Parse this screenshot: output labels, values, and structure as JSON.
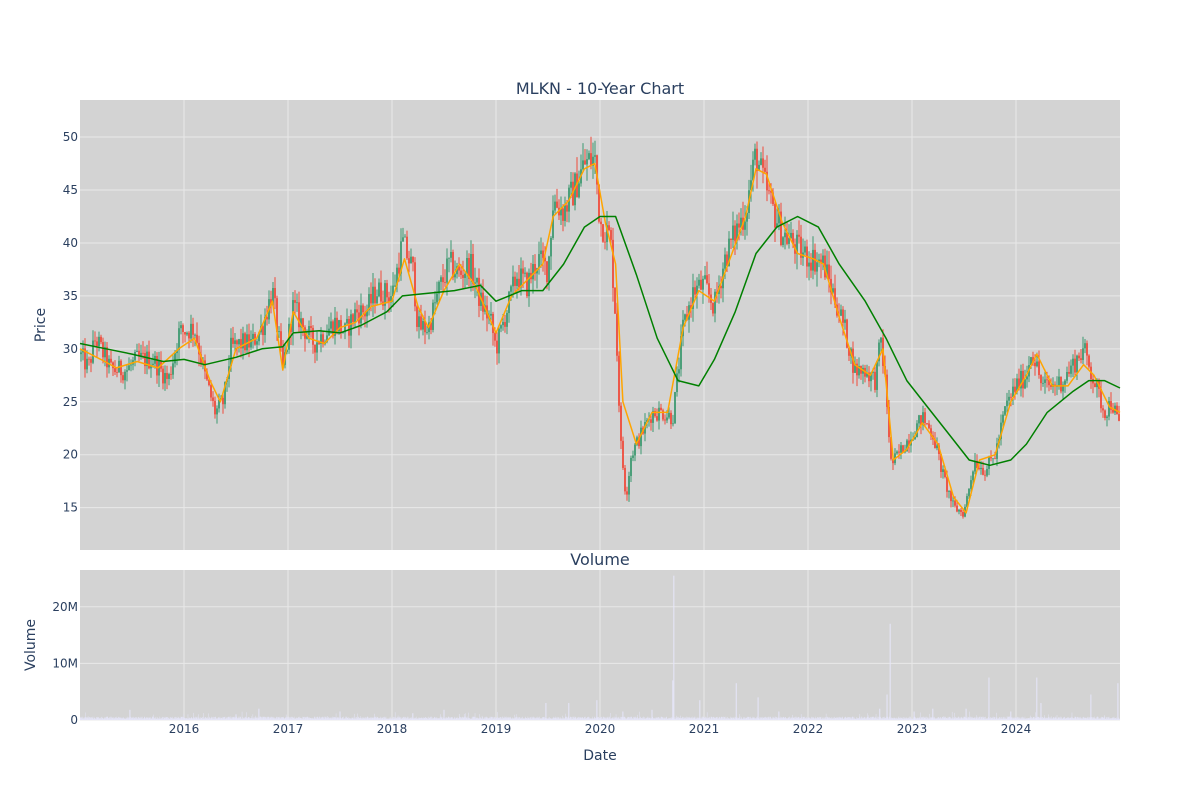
{
  "colors": {
    "panel_bg": "#d3d3d3",
    "grid": "#e8e8e8",
    "up_candle": "#3d9970",
    "down_candle": "#ef4b3b",
    "ma_short": "#ffa500",
    "ma_long": "#008000",
    "volume_bar": "#e6e6fa",
    "text": "#2a3f5f"
  },
  "chart_data": [
    {
      "type": "candlestick",
      "title": "MLKN - 10-Year Chart",
      "xlabel": "",
      "ylabel": "Price",
      "xlim": [
        2015.0,
        2025.0
      ],
      "ylim": [
        11,
        53.5
      ],
      "yticks": [
        15,
        20,
        25,
        30,
        35,
        40,
        45,
        50
      ],
      "grid": true,
      "legend": "none",
      "price_anchors": [
        [
          2015.0,
          29.5
        ],
        [
          2015.08,
          28.2
        ],
        [
          2015.15,
          31.0
        ],
        [
          2015.3,
          28.0
        ],
        [
          2015.45,
          28.0
        ],
        [
          2015.55,
          29.0
        ],
        [
          2015.7,
          29.0
        ],
        [
          2015.85,
          27.0
        ],
        [
          2015.95,
          31.5
        ],
        [
          2016.1,
          32.0
        ],
        [
          2016.2,
          27.5
        ],
        [
          2016.3,
          24.0
        ],
        [
          2016.38,
          25.0
        ],
        [
          2016.45,
          30.0
        ],
        [
          2016.55,
          30.5
        ],
        [
          2016.65,
          30.5
        ],
        [
          2016.75,
          32.0
        ],
        [
          2016.85,
          35.5
        ],
        [
          2016.95,
          28.0
        ],
        [
          2017.05,
          34.0
        ],
        [
          2017.15,
          32.0
        ],
        [
          2017.25,
          30.5
        ],
        [
          2017.35,
          31.5
        ],
        [
          2017.45,
          32.5
        ],
        [
          2017.55,
          31.5
        ],
        [
          2017.65,
          33.5
        ],
        [
          2017.75,
          33.5
        ],
        [
          2017.85,
          35.5
        ],
        [
          2018.0,
          35.0
        ],
        [
          2018.1,
          40.0
        ],
        [
          2018.2,
          37.5
        ],
        [
          2018.25,
          32.0
        ],
        [
          2018.35,
          32.0
        ],
        [
          2018.45,
          35.5
        ],
        [
          2018.55,
          38.0
        ],
        [
          2018.65,
          37.0
        ],
        [
          2018.75,
          38.0
        ],
        [
          2018.85,
          34.5
        ],
        [
          2018.95,
          32.5
        ],
        [
          2019.0,
          30.0
        ],
        [
          2019.1,
          33.5
        ],
        [
          2019.2,
          37.0
        ],
        [
          2019.3,
          36.0
        ],
        [
          2019.4,
          38.5
        ],
        [
          2019.5,
          37.5
        ],
        [
          2019.55,
          44.0
        ],
        [
          2019.65,
          43.0
        ],
        [
          2019.75,
          45.0
        ],
        [
          2019.85,
          47.5
        ],
        [
          2019.95,
          48.0
        ],
        [
          2020.0,
          42.0
        ],
        [
          2020.1,
          40.5
        ],
        [
          2020.15,
          33.0
        ],
        [
          2020.2,
          21.0
        ],
        [
          2020.25,
          16.0
        ],
        [
          2020.3,
          20.0
        ],
        [
          2020.4,
          22.0
        ],
        [
          2020.5,
          24.0
        ],
        [
          2020.6,
          24.0
        ],
        [
          2020.7,
          23.5
        ],
        [
          2020.8,
          32.0
        ],
        [
          2020.9,
          35.5
        ],
        [
          2021.0,
          36.0
        ],
        [
          2021.1,
          34.0
        ],
        [
          2021.2,
          38.5
        ],
        [
          2021.3,
          41.0
        ],
        [
          2021.4,
          43.0
        ],
        [
          2021.5,
          48.5
        ],
        [
          2021.55,
          46.5
        ],
        [
          2021.65,
          43.5
        ],
        [
          2021.75,
          41.0
        ],
        [
          2021.85,
          40.0
        ],
        [
          2021.95,
          39.0
        ],
        [
          2022.05,
          38.5
        ],
        [
          2022.15,
          38.0
        ],
        [
          2022.25,
          35.0
        ],
        [
          2022.35,
          32.0
        ],
        [
          2022.45,
          28.0
        ],
        [
          2022.55,
          28.0
        ],
        [
          2022.65,
          27.0
        ],
        [
          2022.7,
          31.0
        ],
        [
          2022.75,
          26.0
        ],
        [
          2022.8,
          19.0
        ],
        [
          2022.9,
          20.5
        ],
        [
          2023.0,
          22.0
        ],
        [
          2023.1,
          23.5
        ],
        [
          2023.2,
          22.0
        ],
        [
          2023.3,
          18.0
        ],
        [
          2023.4,
          15.0
        ],
        [
          2023.5,
          14.5
        ],
        [
          2023.6,
          19.5
        ],
        [
          2023.7,
          18.5
        ],
        [
          2023.8,
          20.0
        ],
        [
          2023.9,
          24.5
        ],
        [
          2024.0,
          26.5
        ],
        [
          2024.1,
          27.5
        ],
        [
          2024.15,
          30.0
        ],
        [
          2024.25,
          26.5
        ],
        [
          2024.35,
          26.5
        ],
        [
          2024.45,
          27.0
        ],
        [
          2024.55,
          28.5
        ],
        [
          2024.65,
          30.0
        ],
        [
          2024.75,
          27.0
        ],
        [
          2024.85,
          24.0
        ],
        [
          2024.92,
          25.0
        ],
        [
          2025.0,
          22.5
        ]
      ],
      "series": [
        {
          "type": "line",
          "values": [
            [
              2015.0,
              30.0
            ],
            [
              2015.1,
              29.5
            ],
            [
              2015.2,
              29.0
            ],
            [
              2015.35,
              28.2
            ],
            [
              2015.55,
              28.8
            ],
            [
              2015.75,
              28.2
            ],
            [
              2015.95,
              30.0
            ],
            [
              2016.1,
              31.0
            ],
            [
              2016.25,
              27.0
            ],
            [
              2016.35,
              25.0
            ],
            [
              2016.5,
              30.0
            ],
            [
              2016.7,
              31.0
            ],
            [
              2016.85,
              34.5
            ],
            [
              2016.95,
              28.0
            ],
            [
              2017.05,
              33.5
            ],
            [
              2017.2,
              31.0
            ],
            [
              2017.35,
              30.5
            ],
            [
              2017.5,
              32.0
            ],
            [
              2017.65,
              32.5
            ],
            [
              2017.8,
              34.0
            ],
            [
              2018.0,
              34.5
            ],
            [
              2018.12,
              38.5
            ],
            [
              2018.25,
              34.0
            ],
            [
              2018.35,
              32.0
            ],
            [
              2018.5,
              35.5
            ],
            [
              2018.65,
              38.0
            ],
            [
              2018.8,
              36.0
            ],
            [
              2019.0,
              31.5
            ],
            [
              2019.15,
              35.0
            ],
            [
              2019.3,
              36.5
            ],
            [
              2019.45,
              38.0
            ],
            [
              2019.55,
              42.5
            ],
            [
              2019.7,
              44.0
            ],
            [
              2019.85,
              47.0
            ],
            [
              2019.95,
              47.5
            ],
            [
              2020.05,
              42.0
            ],
            [
              2020.15,
              38.0
            ],
            [
              2020.22,
              25.0
            ],
            [
              2020.35,
              21.0
            ],
            [
              2020.5,
              24.0
            ],
            [
              2020.65,
              24.0
            ],
            [
              2020.8,
              32.0
            ],
            [
              2020.95,
              35.5
            ],
            [
              2021.1,
              34.5
            ],
            [
              2021.25,
              38.5
            ],
            [
              2021.4,
              42.5
            ],
            [
              2021.5,
              47.0
            ],
            [
              2021.6,
              46.5
            ],
            [
              2021.75,
              42.0
            ],
            [
              2021.9,
              39.0
            ],
            [
              2022.05,
              38.5
            ],
            [
              2022.15,
              38.0
            ],
            [
              2022.3,
              33.0
            ],
            [
              2022.45,
              28.5
            ],
            [
              2022.6,
              27.5
            ],
            [
              2022.72,
              30.0
            ],
            [
              2022.82,
              19.5
            ],
            [
              2022.95,
              20.5
            ],
            [
              2023.1,
              23.0
            ],
            [
              2023.25,
              21.0
            ],
            [
              2023.4,
              16.0
            ],
            [
              2023.52,
              14.5
            ],
            [
              2023.65,
              19.5
            ],
            [
              2023.8,
              20.0
            ],
            [
              2023.95,
              25.0
            ],
            [
              2024.1,
              27.5
            ],
            [
              2024.2,
              29.5
            ],
            [
              2024.35,
              26.5
            ],
            [
              2024.5,
              26.5
            ],
            [
              2024.65,
              28.5
            ],
            [
              2024.75,
              27.5
            ],
            [
              2024.9,
              24.5
            ],
            [
              2025.0,
              24.0
            ]
          ]
        },
        {
          "type": "line",
          "values": [
            [
              2015.0,
              30.5
            ],
            [
              2015.25,
              30.0
            ],
            [
              2015.5,
              29.5
            ],
            [
              2015.8,
              28.8
            ],
            [
              2016.0,
              29.0
            ],
            [
              2016.2,
              28.5
            ],
            [
              2016.5,
              29.2
            ],
            [
              2016.75,
              30.0
            ],
            [
              2016.95,
              30.2
            ],
            [
              2017.05,
              31.5
            ],
            [
              2017.3,
              31.7
            ],
            [
              2017.5,
              31.5
            ],
            [
              2017.7,
              32.2
            ],
            [
              2017.95,
              33.5
            ],
            [
              2018.1,
              35.0
            ],
            [
              2018.3,
              35.2
            ],
            [
              2018.6,
              35.5
            ],
            [
              2018.85,
              36.0
            ],
            [
              2019.0,
              34.5
            ],
            [
              2019.25,
              35.5
            ],
            [
              2019.45,
              35.5
            ],
            [
              2019.65,
              38.0
            ],
            [
              2019.85,
              41.5
            ],
            [
              2020.0,
              42.5
            ],
            [
              2020.15,
              42.5
            ],
            [
              2020.35,
              37.0
            ],
            [
              2020.55,
              31.0
            ],
            [
              2020.75,
              27.0
            ],
            [
              2020.95,
              26.5
            ],
            [
              2021.1,
              29.0
            ],
            [
              2021.3,
              33.5
            ],
            [
              2021.5,
              39.0
            ],
            [
              2021.7,
              41.5
            ],
            [
              2021.9,
              42.5
            ],
            [
              2022.1,
              41.5
            ],
            [
              2022.3,
              38.0
            ],
            [
              2022.55,
              34.5
            ],
            [
              2022.75,
              31.0
            ],
            [
              2022.95,
              27.0
            ],
            [
              2023.15,
              24.5
            ],
            [
              2023.35,
              22.0
            ],
            [
              2023.55,
              19.5
            ],
            [
              2023.75,
              19.0
            ],
            [
              2023.95,
              19.5
            ],
            [
              2024.1,
              21.0
            ],
            [
              2024.3,
              24.0
            ],
            [
              2024.55,
              26.0
            ],
            [
              2024.7,
              27.0
            ],
            [
              2024.85,
              27.0
            ],
            [
              2025.0,
              26.3
            ]
          ]
        }
      ]
    },
    {
      "type": "bar",
      "title": "Volume",
      "xlabel": "Date",
      "ylabel": "Volume",
      "xlim": [
        2015.0,
        2025.0
      ],
      "ylim": [
        0,
        26500000
      ],
      "yticks": [
        0,
        10000000,
        20000000
      ],
      "ytick_labels": [
        "0",
        "10M",
        "20M"
      ],
      "xticks": [
        2016,
        2017,
        2018,
        2019,
        2020,
        2021,
        2022,
        2023,
        2024
      ],
      "xtick_labels": [
        "2016",
        "2017",
        "2018",
        "2019",
        "2020",
        "2021",
        "2022",
        "2023",
        "2024"
      ],
      "grid": true,
      "legend": "none",
      "baseline": 400000,
      "spikes": [
        [
          2015.48,
          1800000
        ],
        [
          2016.5,
          1000000
        ],
        [
          2016.72,
          2000000
        ],
        [
          2017.5,
          1500000
        ],
        [
          2018.2,
          1200000
        ],
        [
          2018.5,
          1800000
        ],
        [
          2019.48,
          3000000
        ],
        [
          2019.7,
          3000000
        ],
        [
          2019.97,
          3500000
        ],
        [
          2020.22,
          1500000
        ],
        [
          2020.5,
          1800000
        ],
        [
          2020.71,
          25500000
        ],
        [
          2020.7,
          7000000
        ],
        [
          2020.96,
          3500000
        ],
        [
          2021.31,
          6500000
        ],
        [
          2021.52,
          4000000
        ],
        [
          2021.72,
          1500000
        ],
        [
          2022.69,
          2000000
        ],
        [
          2022.76,
          4500000
        ],
        [
          2022.79,
          17000000
        ],
        [
          2023.02,
          1500000
        ],
        [
          2023.2,
          2000000
        ],
        [
          2023.52,
          2000000
        ],
        [
          2023.74,
          7500000
        ],
        [
          2023.95,
          1500000
        ],
        [
          2024.2,
          7500000
        ],
        [
          2024.24,
          3000000
        ],
        [
          2024.72,
          4500000
        ],
        [
          2024.98,
          6500000
        ]
      ]
    }
  ]
}
